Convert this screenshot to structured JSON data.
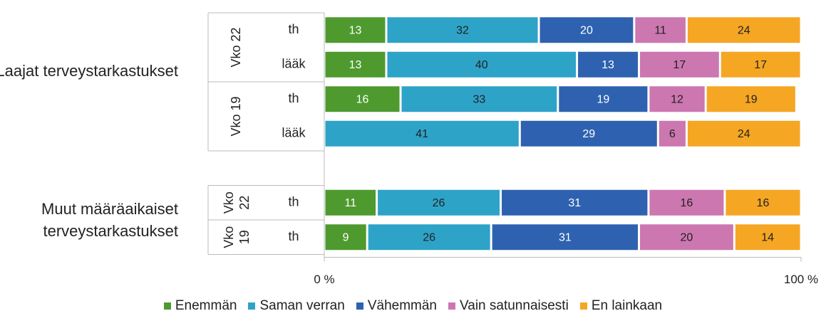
{
  "chart_data": {
    "type": "stacked-bar-horizontal",
    "groups": [
      {
        "name": "Laajat terveystarkastukset",
        "subgroups": [
          {
            "name": "Vko 22",
            "categories": [
              "th",
              "lääk"
            ]
          },
          {
            "name": "Vko 19",
            "categories": [
              "th",
              "lääk"
            ]
          }
        ]
      },
      {
        "name": "Muut määräaikaiset terveystarkastukset",
        "subgroups": [
          {
            "name": "Vko 22",
            "categories": [
              "th"
            ]
          },
          {
            "name": "Vko 19",
            "categories": [
              "th"
            ]
          }
        ]
      }
    ],
    "series": [
      {
        "name": "Enemmän",
        "color": "#4e9a2f",
        "label_color": "#ffffff",
        "values": [
          13,
          13,
          16,
          0,
          11,
          9
        ]
      },
      {
        "name": "Saman verran",
        "color": "#2ea3c8",
        "label_color": "#222222",
        "values": [
          32,
          40,
          33,
          41,
          26,
          26
        ]
      },
      {
        "name": "Vähemmän",
        "color": "#2e62b0",
        "label_color": "#ffffff",
        "values": [
          20,
          13,
          19,
          29,
          31,
          31
        ]
      },
      {
        "name": "Vain satunnaisesti",
        "color": "#cc77b0",
        "label_color": "#222222",
        "values": [
          11,
          17,
          12,
          6,
          16,
          20
        ]
      },
      {
        "name": "En lainkaan",
        "color": "#f5a623",
        "label_color": "#222222",
        "values": [
          24,
          17,
          19,
          24,
          16,
          14
        ]
      }
    ],
    "xlim": [
      0,
      100
    ],
    "xticks": [
      {
        "value": 0,
        "label": "0 %"
      },
      {
        "value": 100,
        "label": "100 %"
      }
    ]
  }
}
